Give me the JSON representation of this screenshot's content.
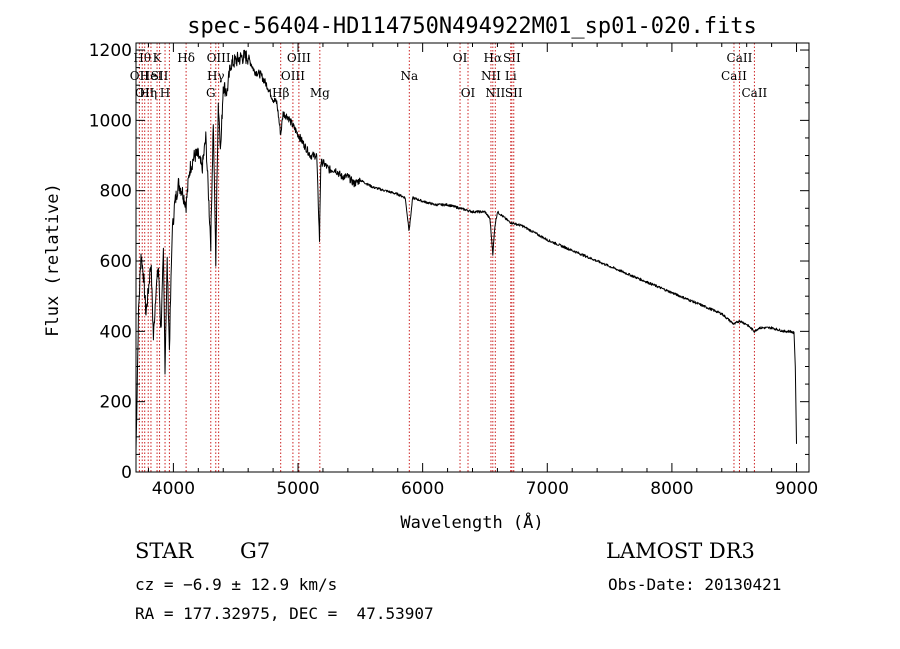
{
  "chart_data": {
    "type": "line",
    "title": "spec-56404-HD114750N494922M01_sp01-020.fits",
    "xlabel": "Wavelength (Å)",
    "ylabel": "Flux (relative)",
    "xlim": [
      3700,
      9100
    ],
    "ylim": [
      0,
      1220
    ],
    "xticks": [
      4000,
      5000,
      6000,
      7000,
      8000,
      9000
    ],
    "yticks": [
      0,
      200,
      400,
      600,
      800,
      1000,
      1200
    ],
    "grid": false,
    "series": [
      {
        "name": "flux",
        "x": [
          3700,
          3720,
          3740,
          3760,
          3780,
          3800,
          3820,
          3840,
          3860,
          3880,
          3900,
          3920,
          3933,
          3950,
          3968,
          3990,
          4010,
          4040,
          4070,
          4102,
          4130,
          4170,
          4200,
          4230,
          4260,
          4300,
          4320,
          4340,
          4360,
          4380,
          4400,
          4430,
          4460,
          4500,
          4550,
          4600,
          4650,
          4700,
          4750,
          4800,
          4830,
          4861,
          4880,
          4920,
          4950,
          5000,
          5050,
          5100,
          5150,
          5172,
          5183,
          5200,
          5250,
          5300,
          5350,
          5400,
          5450,
          5500,
          5600,
          5700,
          5800,
          5860,
          5890,
          5896,
          5920,
          6000,
          6100,
          6200,
          6300,
          6400,
          6500,
          6540,
          6563,
          6580,
          6600,
          6700,
          6800,
          6900,
          7000,
          7200,
          7400,
          7600,
          7800,
          8000,
          8200,
          8400,
          8498,
          8542,
          8600,
          8662,
          8700,
          8800,
          8900,
          8950,
          8980,
          8990,
          9000
        ],
        "y": [
          60,
          450,
          620,
          560,
          450,
          520,
          600,
          380,
          520,
          580,
          400,
          620,
          300,
          600,
          350,
          680,
          760,
          820,
          800,
          760,
          860,
          900,
          900,
          860,
          950,
          650,
          1000,
          600,
          1050,
          920,
          1100,
          1080,
          1160,
          1170,
          1180,
          1180,
          1140,
          1130,
          1100,
          1060,
          1050,
          960,
          1020,
          1010,
          990,
          960,
          930,
          900,
          900,
          660,
          880,
          880,
          860,
          860,
          840,
          840,
          820,
          830,
          810,
          800,
          790,
          780,
          690,
          700,
          780,
          770,
          760,
          760,
          750,
          740,
          740,
          720,
          620,
          700,
          740,
          710,
          700,
          680,
          660,
          630,
          600,
          570,
          540,
          510,
          480,
          450,
          420,
          430,
          420,
          400,
          410,
          410,
          400,
          400,
          395,
          300,
          80
        ]
      }
    ],
    "lines": [
      {
        "wavelength": 3727,
        "label": "OII",
        "row": 1
      },
      {
        "wavelength": 3750,
        "label": "Hθ",
        "row": 0
      },
      {
        "wavelength": 3770,
        "label": "OII",
        "row": 2
      },
      {
        "wavelength": 3798,
        "label": "Hη",
        "row": 2
      },
      {
        "wavelength": 3820,
        "label": "HeI",
        "row": 1
      },
      {
        "wavelength": 3869,
        "label": "K",
        "row": 0
      },
      {
        "wavelength": 3889,
        "label": "SII",
        "row": 1
      },
      {
        "wavelength": 3933,
        "label": "H",
        "row": 2
      },
      {
        "wavelength": 3968,
        "label": "",
        "row": 0
      },
      {
        "wavelength": 4102,
        "label": "Hδ",
        "row": 0
      },
      {
        "wavelength": 4300,
        "label": "G",
        "row": 2
      },
      {
        "wavelength": 4340,
        "label": "Hγ",
        "row": 1
      },
      {
        "wavelength": 4363,
        "label": "OIII",
        "row": 0
      },
      {
        "wavelength": 4861,
        "label": "Hβ",
        "row": 2
      },
      {
        "wavelength": 4959,
        "label": "OIII",
        "row": 1
      },
      {
        "wavelength": 5007,
        "label": "OIII",
        "row": 0
      },
      {
        "wavelength": 5175,
        "label": "Mg",
        "row": 2
      },
      {
        "wavelength": 5893,
        "label": "Na",
        "row": 1
      },
      {
        "wavelength": 6300,
        "label": "OI",
        "row": 0
      },
      {
        "wavelength": 6364,
        "label": "OI",
        "row": 2
      },
      {
        "wavelength": 6548,
        "label": "NII",
        "row": 1
      },
      {
        "wavelength": 6563,
        "label": "Hα",
        "row": 0
      },
      {
        "wavelength": 6583,
        "label": "NII",
        "row": 2
      },
      {
        "wavelength": 6707,
        "label": "Li",
        "row": 1
      },
      {
        "wavelength": 6716,
        "label": "SII",
        "row": 0
      },
      {
        "wavelength": 6731,
        "label": "SII",
        "row": 2
      },
      {
        "wavelength": 8498,
        "label": "CaII",
        "row": 1
      },
      {
        "wavelength": 8542,
        "label": "CaII",
        "row": 0
      },
      {
        "wavelength": 8662,
        "label": "CaII",
        "row": 2
      }
    ]
  },
  "info": {
    "object_class": "STAR",
    "subclass": "G7",
    "cz": "cz = −6.9 ± 12.9 km/s",
    "coords": "RA = 177.32975, DEC =  47.53907",
    "survey": "LAMOST DR3",
    "obs_date": "Obs-Date: 20130421"
  },
  "colors": {
    "line_marker": "#cc2222",
    "spectrum": "#000000",
    "axis": "#000000"
  }
}
